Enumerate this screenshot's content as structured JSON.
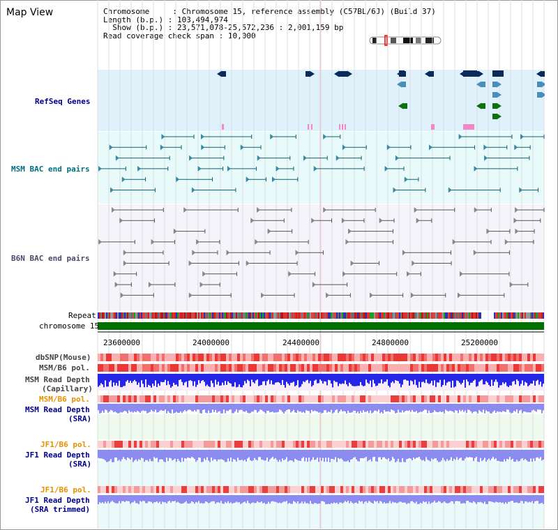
{
  "title": "Map View",
  "info": {
    "chromosome_key": "Chromosome",
    "chromosome_val": "Chromosome 15, reference assembly (C57BL/6J) (Build 37)",
    "length_key": "Length (b.p.)",
    "length_val": "103,494,974",
    "show_key": "Show (b.p.)",
    "show_val": "23,571,078-25,572,236 : 2,001,159 bp",
    "coverage_key": "Read coverage check span",
    "coverage_val": "10,000"
  },
  "tracks": {
    "refseq": "RefSeq Genes",
    "msm_bac": "MSM BAC end pairs",
    "b6n_bac": "B6N BAC end pairs",
    "repeat": "Repeat",
    "chromosome": "chromosome 15",
    "dbsnp": "dbSNP(Mouse)",
    "msm_b6_pol": "MSM/B6 pol.",
    "msm_depth_cap_1": "MSM Read Depth",
    "msm_depth_cap_2": "(Capillary)",
    "msm_b6_pol2": "MSM/B6 pol.",
    "msm_depth_sra_1": "MSM Read Depth",
    "msm_depth_sra_2": "(SRA)",
    "jf1_b6_pol": "JF1/B6 pol.",
    "jf1_depth_sra_1": "JF1 Read Depth",
    "jf1_depth_sra_2": "(SRA)",
    "jf1_b6_pol2": "JF1/B6 pol.",
    "jf1_depth_trim_1": "JF1 Read Depth",
    "jf1_depth_trim_2": "(SRA trimmed)"
  },
  "axis": {
    "ticks": [
      "23600000",
      "24000000",
      "24400000",
      "24800000",
      "25200000"
    ]
  },
  "colors": {
    "refseq_bg": "#dff1fb",
    "msm_bg": "#e8fafa",
    "b6n_bg": "#f4f4fa",
    "chromosome": "#007000",
    "track_label_blue": "#00008b",
    "track_label_teal": "#006f80",
    "track_label_orange": "#e89000",
    "depth_blue": "#2626e6",
    "depth_purple": "#8c8cf0"
  }
}
